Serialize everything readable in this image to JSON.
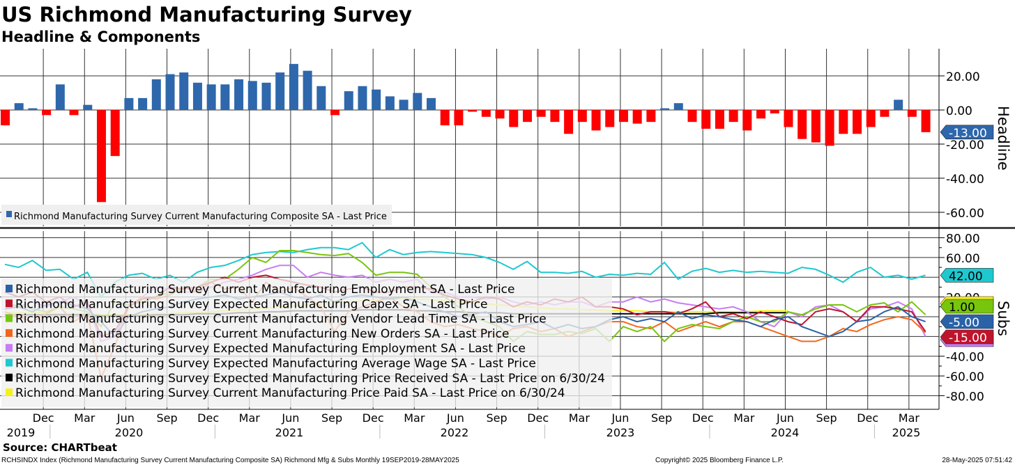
{
  "title": "US Richmond Manufacturing Survey",
  "subtitle": "Headline & Components",
  "source": "Source: CHARTbeat",
  "footer_left": "RCHSINDX Index (Richmond Manufacturing Survey Current Manufacturing Composite SA) Richmond Mfg & Subs  Monthly 19SEP2019-28MAY2025",
  "footer_center": "Copyright© 2025 Bloomberg Finance L.P.",
  "footer_right": "28-May-2025 07:51:42",
  "chart_data": [
    {
      "type": "bar",
      "panel_label": "Headline",
      "start": "2019-09",
      "ylim": [
        -60,
        20
      ],
      "yticks": [
        "20.00",
        "0.00",
        "-20.00",
        "-40.00",
        "-60.00"
      ],
      "last_value_label": "-13.00",
      "colors": {
        "positive": "#2e67ac",
        "negative": "#ff0000",
        "last": "#2e67ac"
      },
      "legend": "Richmond Manufacturing Survey Current Manufacturing Composite SA - Last Price",
      "values": [
        -9,
        4,
        1,
        -3,
        15,
        -3,
        3,
        -54,
        -27,
        7,
        7,
        18,
        21,
        22,
        16,
        15,
        15,
        18,
        17,
        16,
        22,
        27,
        23,
        14,
        -3,
        11,
        14,
        12,
        8,
        6,
        10,
        7,
        -9,
        -9,
        -1,
        -4,
        -5,
        -10,
        -7,
        -4,
        -7,
        -14,
        -7,
        -12,
        -10,
        -7,
        -8,
        -7,
        1,
        4,
        -7,
        -11,
        -11,
        -7,
        -12,
        -5,
        -2,
        -10,
        -17,
        -19,
        -21,
        -14,
        -14,
        -10,
        -4,
        6,
        -4,
        -13
      ]
    },
    {
      "type": "line",
      "panel_label": "Subs",
      "start": "2019-09",
      "ylim": [
        -80,
        80
      ],
      "yticks": [
        "80.00",
        "60.00",
        "20.00",
        "-40.00",
        "-60.00",
        "-80.00"
      ],
      "series": [
        {
          "name": "Richmond Manufacturing Survey Current Manufacturing Employment SA - Last Price",
          "color": "#2a62a8",
          "last_label": "-5.00",
          "values": [
            8,
            10,
            5,
            12,
            15,
            12,
            8,
            -5,
            -20,
            0,
            5,
            8,
            10,
            15,
            18,
            20,
            22,
            18,
            20,
            22,
            25,
            20,
            18,
            22,
            15,
            20,
            22,
            20,
            18,
            20,
            15,
            10,
            5,
            0,
            2,
            5,
            -5,
            -10,
            -8,
            -5,
            -12,
            -8,
            -12,
            -10,
            -3,
            0,
            -5,
            -2,
            -5,
            5,
            -2,
            2,
            0,
            -3,
            -5,
            -10,
            -3,
            0,
            -10,
            -15,
            -20,
            -15,
            -5,
            -3,
            5,
            10,
            0,
            -5
          ]
        },
        {
          "name": "Richmond Manufacturing Survey Expected Manufacturing Capex SA - Last Price",
          "color": "#c0142c",
          "last_label": "-15.00",
          "values": [
            25,
            20,
            25,
            15,
            20,
            10,
            15,
            -20,
            -15,
            10,
            18,
            20,
            30,
            28,
            30,
            35,
            40,
            35,
            40,
            42,
            38,
            35,
            32,
            30,
            25,
            28,
            30,
            25,
            25,
            30,
            30,
            28,
            22,
            18,
            15,
            20,
            18,
            10,
            15,
            12,
            18,
            15,
            20,
            10,
            10,
            8,
            2,
            5,
            5,
            3,
            8,
            15,
            0,
            3,
            -2,
            5,
            0,
            -5,
            -8,
            5,
            8,
            5,
            -5,
            10,
            10,
            8,
            5,
            -15
          ]
        },
        {
          "name": "Richmond Manufacturing Survey Current Manufacturing Vendor Lead Time SA - Last Price",
          "color": "#78c50e",
          "last_label": "1.00",
          "values": [
            10,
            12,
            8,
            5,
            10,
            8,
            5,
            -10,
            15,
            12,
            15,
            20,
            25,
            28,
            30,
            38,
            38,
            48,
            60,
            55,
            67,
            67,
            65,
            63,
            62,
            64,
            55,
            42,
            45,
            45,
            43,
            30,
            20,
            10,
            0,
            -5,
            -10,
            -25,
            -15,
            -18,
            -18,
            -15,
            -17,
            -12,
            -25,
            -10,
            -15,
            -10,
            -25,
            -12,
            -8,
            -10,
            -12,
            -5,
            0,
            -5,
            -5,
            5,
            2,
            8,
            12,
            12,
            5,
            12,
            14,
            5,
            15,
            2
          ]
        },
        {
          "name": "Richmond Manufacturing Survey Current Manufacturing New Orders SA - Last Price",
          "color": "#f2661c",
          "last_label": "",
          "values": [
            5,
            0,
            -5,
            3,
            10,
            -5,
            3,
            -62,
            -30,
            10,
            20,
            18,
            22,
            30,
            25,
            35,
            28,
            30,
            15,
            35,
            25,
            30,
            20,
            10,
            -15,
            5,
            10,
            15,
            20,
            10,
            5,
            -5,
            -10,
            -8,
            -12,
            -15,
            -20,
            -12,
            -10,
            -15,
            -12,
            -20,
            -15,
            -10,
            -5,
            -5,
            -10,
            -12,
            -5,
            -15,
            -10,
            -5,
            -10,
            -5,
            -5,
            -10,
            -15,
            -20,
            -25,
            -25,
            -20,
            -12,
            -15,
            -8,
            -3,
            0,
            -3,
            -16
          ]
        },
        {
          "name": "Richmond Manufacturing Survey Expected Manufacturing Employment SA - Last Price",
          "color": "#c77df3",
          "last_label": "",
          "values": [
            15,
            10,
            15,
            10,
            15,
            20,
            12,
            -25,
            -20,
            10,
            20,
            30,
            28,
            25,
            25,
            30,
            35,
            38,
            42,
            48,
            52,
            52,
            40,
            45,
            42,
            40,
            42,
            35,
            38,
            35,
            38,
            25,
            25,
            20,
            20,
            18,
            20,
            15,
            12,
            15,
            12,
            15,
            15,
            10,
            15,
            15,
            20,
            15,
            18,
            14,
            12,
            10,
            8,
            10,
            5,
            -5,
            -10,
            5,
            0,
            10,
            12,
            5,
            -5,
            8,
            10,
            15,
            8,
            -20
          ]
        },
        {
          "name": "Richmond Manufacturing Survey Expected Manufacturing Average Wage SA - Last Price",
          "color": "#1ec8cf",
          "last_label": "42.00",
          "values": [
            53,
            50,
            57,
            47,
            48,
            38,
            45,
            20,
            35,
            42,
            44,
            38,
            42,
            35,
            45,
            50,
            52,
            57,
            63,
            65,
            66,
            65,
            68,
            70,
            70,
            68,
            75,
            60,
            68,
            63,
            65,
            66,
            65,
            64,
            63,
            60,
            55,
            48,
            56,
            45,
            45,
            44,
            46,
            40,
            43,
            42,
            44,
            43,
            55,
            38,
            46,
            49,
            45,
            47,
            45,
            46,
            45,
            44,
            50,
            48,
            42,
            35,
            45,
            50,
            40,
            42,
            38,
            42
          ]
        },
        {
          "name": "Richmond Manufacturing Survey Expected Manufacturing Price Received SA - Last Price on 6/30/24",
          "color": "#000000",
          "last_label": "",
          "values": [
            2,
            2,
            2,
            2,
            2,
            2,
            2,
            1,
            1,
            1,
            1,
            2,
            2,
            2,
            3,
            3,
            3,
            4,
            4,
            5,
            5,
            6,
            6,
            6,
            6,
            6,
            7,
            7,
            7,
            7,
            6,
            6,
            5,
            5,
            4,
            4,
            4,
            3,
            3,
            3,
            3,
            3,
            3,
            3,
            3,
            3,
            3,
            3,
            3,
            3,
            3,
            3,
            4,
            4,
            4,
            4,
            4,
            4
          ]
        },
        {
          "name": "Richmond Manufacturing Survey Current Manufacturing Price Paid SA - Last Price on 6/30/24",
          "color": "#f4f01a",
          "last_label": "",
          "values": [
            4,
            4,
            4,
            4,
            3,
            3,
            3,
            2,
            2,
            2,
            2,
            3,
            3,
            4,
            4,
            5,
            6,
            7,
            8,
            9,
            10,
            11,
            12,
            13,
            14,
            15,
            16,
            17,
            18,
            18,
            18,
            17,
            16,
            15,
            14,
            13,
            12,
            11,
            10,
            9,
            8,
            8,
            7,
            7,
            6,
            6,
            6,
            5,
            5,
            5,
            5,
            5,
            5,
            5,
            5,
            6,
            6,
            6
          ]
        }
      ]
    }
  ],
  "x_axis": {
    "months": [
      "Dec",
      "Mar",
      "Jun",
      "Sep",
      "Dec",
      "Mar",
      "Jun",
      "Sep",
      "Dec",
      "Mar",
      "Jun",
      "Sep",
      "Dec",
      "Mar",
      "Jun",
      "Sep",
      "Dec",
      "Mar",
      "Jun",
      "Sep",
      "Dec",
      "Mar"
    ],
    "years": [
      "2019",
      "2020",
      "2021",
      "2022",
      "2023",
      "2024",
      "2025"
    ]
  }
}
